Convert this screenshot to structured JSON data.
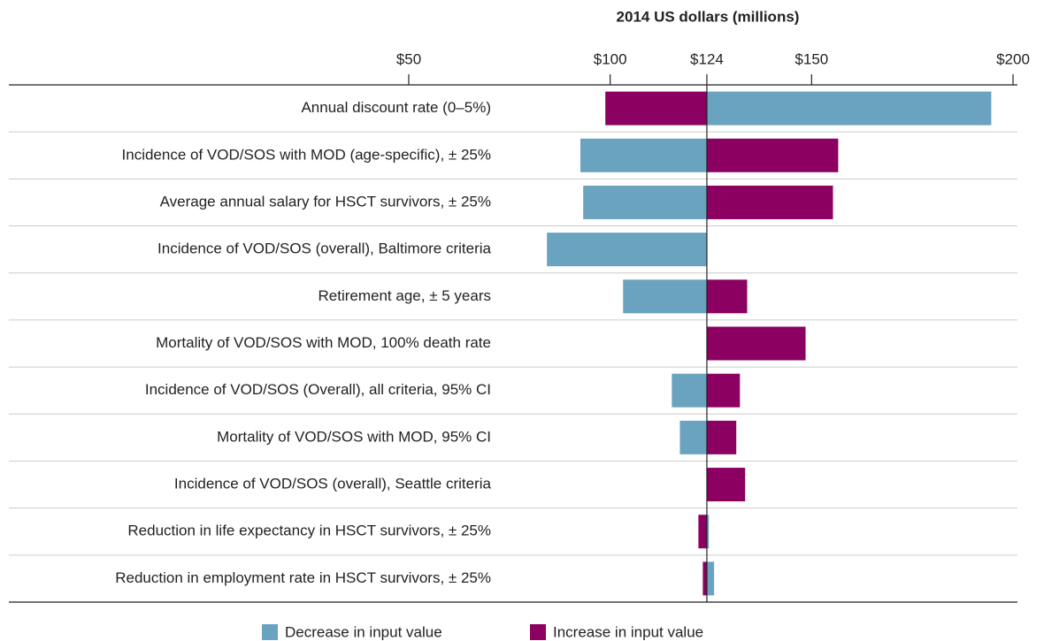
{
  "chart_data": {
    "type": "tornado",
    "title": "2014 US dollars (millions)",
    "categories": [
      "Annual discount rate (0–5%)",
      "Incidence of VOD/SOS with MOD (age-specific), ± 25%",
      "Average annual salary for HSCT survivors, ± 25%",
      "Incidence of VOD/SOS (overall), Baltimore criteria",
      "Retirement age, ± 5 years",
      "Mortality of VOD/SOS with MOD, 100% death rate",
      "Incidence of VOD/SOS (Overall), all criteria, 95% CI",
      "Mortality of VOD/SOS with MOD, 95% CI",
      "Incidence of VOD/SOS (overall), Seattle criteria",
      "Reduction in life expectancy in HSCT survivors, ± 25%",
      "Reduction in employment rate in HSCT survivors, ± 25%"
    ],
    "base": 124,
    "series": [
      {
        "name": "Decrease in input value",
        "color": "#6aa3bf",
        "values": [
          194.6,
          92.6,
          93.3,
          84.3,
          103.2,
          null,
          115.3,
          117.3,
          null,
          124.5,
          125.8
        ]
      },
      {
        "name": "Increase in input value",
        "color": "#8b0060",
        "values": [
          98.8,
          156.6,
          155.3,
          null,
          134.0,
          148.5,
          132.2,
          131.3,
          133.5,
          121.9,
          123.0
        ]
      }
    ],
    "xlim": [
      50,
      200
    ],
    "xticks": [
      {
        "value": 50,
        "label": "$50"
      },
      {
        "value": 100,
        "label": "$100"
      },
      {
        "value": 124,
        "label": "$124"
      },
      {
        "value": 150,
        "label": "$150"
      },
      {
        "value": 200,
        "label": "$200"
      }
    ]
  }
}
